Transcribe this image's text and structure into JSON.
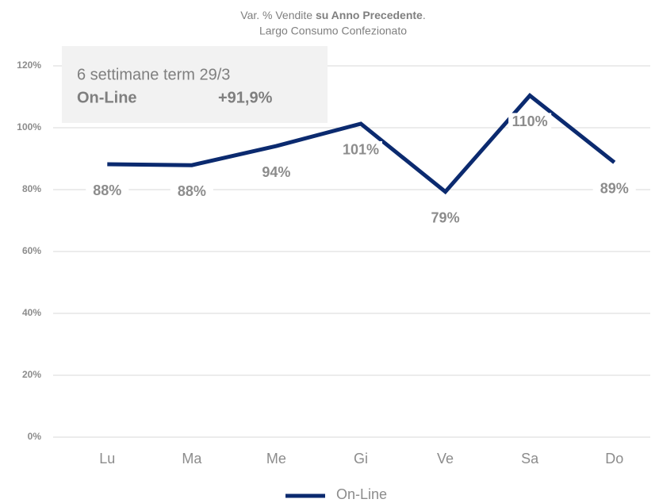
{
  "chart_data": {
    "type": "line",
    "title": {
      "text": "Var. % Vendite",
      "bold": "su Anno Precedente",
      "end": "."
    },
    "subtitle": "Largo Consumo Confezionato",
    "annotation": {
      "line1": "6 settimane term 29/3",
      "name": "On-Line",
      "value": "+91,9%"
    },
    "categories": [
      "Lu",
      "Ma",
      "Me",
      "Gi",
      "Ve",
      "Sa",
      "Do"
    ],
    "series": [
      {
        "name": "On-Line",
        "color": "#0b2a6f",
        "values": [
          88.2,
          87.9,
          94.1,
          101.3,
          79.3,
          110.4,
          88.8
        ],
        "value_labels": [
          "88%",
          "88%",
          "94%",
          "101%",
          "79%",
          "110%",
          "89%"
        ]
      }
    ],
    "ylim": [
      0,
      120
    ],
    "yticks": [
      {
        "value": 0,
        "label": "0%"
      },
      {
        "value": 20,
        "label": "20%"
      },
      {
        "value": 40,
        "label": "40%"
      },
      {
        "value": 60,
        "label": "60%"
      },
      {
        "value": 80,
        "label": "80%"
      },
      {
        "value": 100,
        "label": "100%"
      },
      {
        "value": 120,
        "label": "120%"
      }
    ],
    "grid": true,
    "legend": "bottom"
  }
}
